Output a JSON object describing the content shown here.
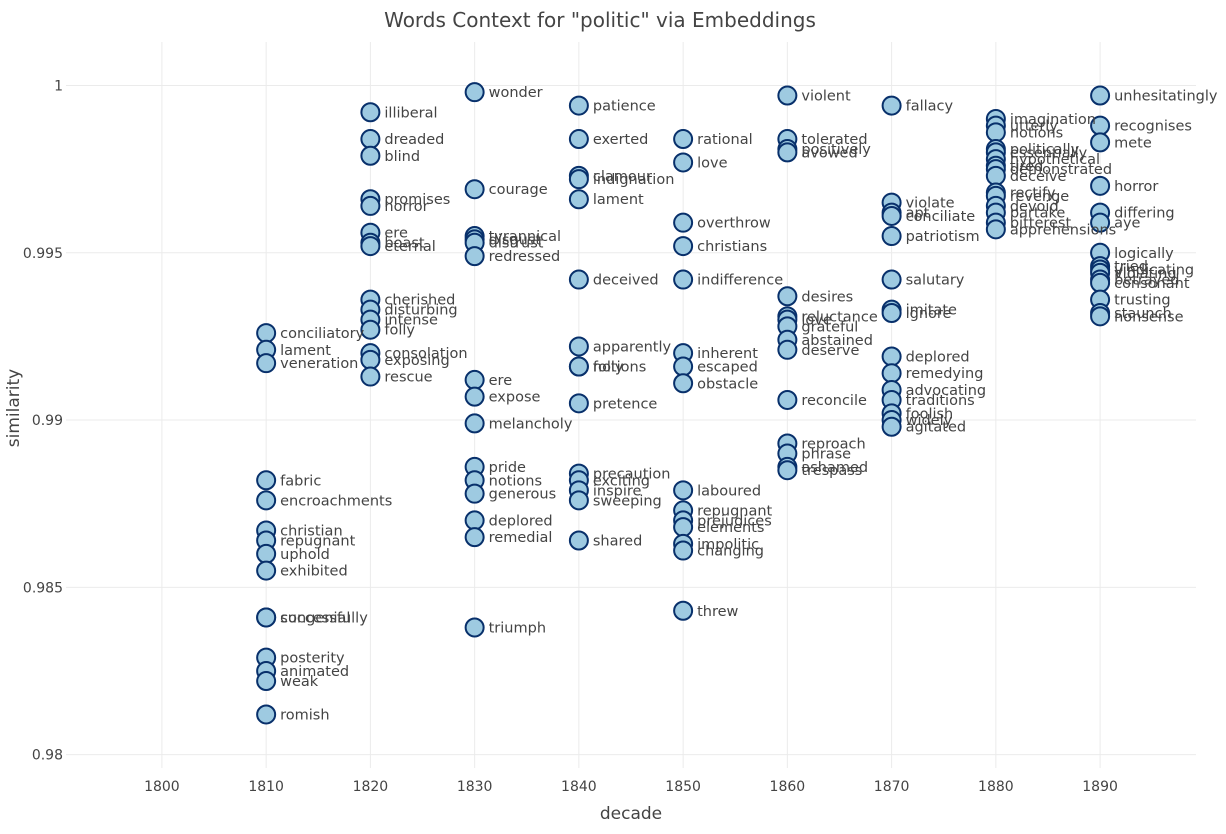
{
  "chart_data": {
    "type": "scatter",
    "title": "Words Context for \"politic\" via Embeddings",
    "xlabel": "decade",
    "ylabel": "similarity",
    "xlim": [
      1790.8,
      1899.2
    ],
    "ylim": [
      0.9796,
      1.0013
    ],
    "xticks": [
      1800,
      1810,
      1820,
      1830,
      1840,
      1850,
      1860,
      1870,
      1880,
      1890
    ],
    "yticks": [
      0.98,
      0.985,
      0.99,
      0.995,
      1
    ],
    "ytick_labels": [
      "0.98",
      "0.985",
      "0.99",
      "0.995",
      "1"
    ],
    "grid": true,
    "marker_fill": "#9ecae1",
    "marker_edge": "#08306b",
    "points": [
      {
        "x": 1810,
        "y": 0.9926,
        "label": "conciliatory"
      },
      {
        "x": 1810,
        "y": 0.9921,
        "label": "lament"
      },
      {
        "x": 1810,
        "y": 0.9917,
        "label": "veneration"
      },
      {
        "x": 1810,
        "y": 0.9882,
        "label": "fabric"
      },
      {
        "x": 1810,
        "y": 0.9876,
        "label": "encroachments"
      },
      {
        "x": 1810,
        "y": 0.9867,
        "label": "christian"
      },
      {
        "x": 1810,
        "y": 0.9864,
        "label": "repugnant"
      },
      {
        "x": 1810,
        "y": 0.986,
        "label": "uphold"
      },
      {
        "x": 1810,
        "y": 0.9855,
        "label": "exhibited"
      },
      {
        "x": 1810,
        "y": 0.9841,
        "label": "congenial"
      },
      {
        "x": 1810,
        "y": 0.9841,
        "label": "successfully"
      },
      {
        "x": 1810,
        "y": 0.9829,
        "label": "posterity"
      },
      {
        "x": 1810,
        "y": 0.9825,
        "label": "animated"
      },
      {
        "x": 1810,
        "y": 0.9822,
        "label": "weak"
      },
      {
        "x": 1810,
        "y": 0.9812,
        "label": "romish"
      },
      {
        "x": 1820,
        "y": 0.9992,
        "label": "illiberal"
      },
      {
        "x": 1820,
        "y": 0.9984,
        "label": "dreaded"
      },
      {
        "x": 1820,
        "y": 0.9979,
        "label": "blind"
      },
      {
        "x": 1820,
        "y": 0.9966,
        "label": "promises"
      },
      {
        "x": 1820,
        "y": 0.9964,
        "label": "horror"
      },
      {
        "x": 1820,
        "y": 0.9956,
        "label": "ere"
      },
      {
        "x": 1820,
        "y": 0.9953,
        "label": "boast"
      },
      {
        "x": 1820,
        "y": 0.9952,
        "label": "eternal"
      },
      {
        "x": 1820,
        "y": 0.9936,
        "label": "cherished"
      },
      {
        "x": 1820,
        "y": 0.9933,
        "label": "disturbing"
      },
      {
        "x": 1820,
        "y": 0.993,
        "label": "intense"
      },
      {
        "x": 1820,
        "y": 0.9927,
        "label": "folly"
      },
      {
        "x": 1820,
        "y": 0.992,
        "label": "consolation"
      },
      {
        "x": 1820,
        "y": 0.9918,
        "label": "exposing"
      },
      {
        "x": 1820,
        "y": 0.9913,
        "label": "rescue"
      },
      {
        "x": 1830,
        "y": 0.9998,
        "label": "wonder"
      },
      {
        "x": 1830,
        "y": 0.9969,
        "label": "courage"
      },
      {
        "x": 1830,
        "y": 0.9955,
        "label": "tyrannical"
      },
      {
        "x": 1830,
        "y": 0.9954,
        "label": "disgust"
      },
      {
        "x": 1830,
        "y": 0.9953,
        "label": "distrust"
      },
      {
        "x": 1830,
        "y": 0.9949,
        "label": "redressed"
      },
      {
        "x": 1830,
        "y": 0.9912,
        "label": "ere"
      },
      {
        "x": 1830,
        "y": 0.9907,
        "label": "expose"
      },
      {
        "x": 1830,
        "y": 0.9899,
        "label": "melancholy"
      },
      {
        "x": 1830,
        "y": 0.9886,
        "label": "pride"
      },
      {
        "x": 1830,
        "y": 0.9882,
        "label": "notions"
      },
      {
        "x": 1830,
        "y": 0.9878,
        "label": "generous"
      },
      {
        "x": 1830,
        "y": 0.987,
        "label": "deplored"
      },
      {
        "x": 1830,
        "y": 0.9865,
        "label": "remedial"
      },
      {
        "x": 1830,
        "y": 0.9838,
        "label": "triumph"
      },
      {
        "x": 1840,
        "y": 0.9994,
        "label": "patience"
      },
      {
        "x": 1840,
        "y": 0.9984,
        "label": "exerted"
      },
      {
        "x": 1840,
        "y": 0.9973,
        "label": "clamour"
      },
      {
        "x": 1840,
        "y": 0.9972,
        "label": "indignation"
      },
      {
        "x": 1840,
        "y": 0.9966,
        "label": "lament"
      },
      {
        "x": 1840,
        "y": 0.9942,
        "label": "deceived"
      },
      {
        "x": 1840,
        "y": 0.9922,
        "label": "apparently"
      },
      {
        "x": 1840,
        "y": 0.9916,
        "label": "notions"
      },
      {
        "x": 1840,
        "y": 0.9916,
        "label": "folly"
      },
      {
        "x": 1840,
        "y": 0.9905,
        "label": "pretence"
      },
      {
        "x": 1840,
        "y": 0.9884,
        "label": "precaution"
      },
      {
        "x": 1840,
        "y": 0.9882,
        "label": "exciting"
      },
      {
        "x": 1840,
        "y": 0.9879,
        "label": "inspire"
      },
      {
        "x": 1840,
        "y": 0.9876,
        "label": "sweeping"
      },
      {
        "x": 1840,
        "y": 0.9864,
        "label": "shared"
      },
      {
        "x": 1850,
        "y": 0.9984,
        "label": "rational"
      },
      {
        "x": 1850,
        "y": 0.9977,
        "label": "love"
      },
      {
        "x": 1850,
        "y": 0.9959,
        "label": "overthrow"
      },
      {
        "x": 1850,
        "y": 0.9952,
        "label": "christians"
      },
      {
        "x": 1850,
        "y": 0.9942,
        "label": "indifference"
      },
      {
        "x": 1850,
        "y": 0.992,
        "label": "inherent"
      },
      {
        "x": 1850,
        "y": 0.9916,
        "label": "escaped"
      },
      {
        "x": 1850,
        "y": 0.9911,
        "label": "obstacle"
      },
      {
        "x": 1850,
        "y": 0.9879,
        "label": "laboured"
      },
      {
        "x": 1850,
        "y": 0.9873,
        "label": "repugnant"
      },
      {
        "x": 1850,
        "y": 0.987,
        "label": "prejudices"
      },
      {
        "x": 1850,
        "y": 0.9868,
        "label": "elements"
      },
      {
        "x": 1850,
        "y": 0.9863,
        "label": "impolitic"
      },
      {
        "x": 1850,
        "y": 0.9861,
        "label": "changing"
      },
      {
        "x": 1850,
        "y": 0.9843,
        "label": "threw"
      },
      {
        "x": 1860,
        "y": 0.9997,
        "label": "violent"
      },
      {
        "x": 1860,
        "y": 0.9984,
        "label": "tolerated"
      },
      {
        "x": 1860,
        "y": 0.9981,
        "label": "positively"
      },
      {
        "x": 1860,
        "y": 0.998,
        "label": "avowed"
      },
      {
        "x": 1860,
        "y": 0.9937,
        "label": "desires"
      },
      {
        "x": 1860,
        "y": 0.9931,
        "label": "reluctance"
      },
      {
        "x": 1860,
        "y": 0.993,
        "label": "love"
      },
      {
        "x": 1860,
        "y": 0.9928,
        "label": "grateful"
      },
      {
        "x": 1860,
        "y": 0.9924,
        "label": "abstained"
      },
      {
        "x": 1860,
        "y": 0.9921,
        "label": "deserve"
      },
      {
        "x": 1860,
        "y": 0.9906,
        "label": "reconcile"
      },
      {
        "x": 1860,
        "y": 0.9893,
        "label": "reproach"
      },
      {
        "x": 1860,
        "y": 0.989,
        "label": "phrase"
      },
      {
        "x": 1860,
        "y": 0.9886,
        "label": "ashamed"
      },
      {
        "x": 1860,
        "y": 0.9885,
        "label": "trespass"
      },
      {
        "x": 1870,
        "y": 0.9994,
        "label": "fallacy"
      },
      {
        "x": 1870,
        "y": 0.9965,
        "label": "violate"
      },
      {
        "x": 1870,
        "y": 0.9962,
        "label": "apt"
      },
      {
        "x": 1870,
        "y": 0.9961,
        "label": "conciliate"
      },
      {
        "x": 1870,
        "y": 0.9955,
        "label": "patriotism"
      },
      {
        "x": 1870,
        "y": 0.9942,
        "label": "salutary"
      },
      {
        "x": 1870,
        "y": 0.9933,
        "label": "imitate"
      },
      {
        "x": 1870,
        "y": 0.9932,
        "label": "ignore"
      },
      {
        "x": 1870,
        "y": 0.9919,
        "label": "deplored"
      },
      {
        "x": 1870,
        "y": 0.9914,
        "label": "remedying"
      },
      {
        "x": 1870,
        "y": 0.9909,
        "label": "advocating"
      },
      {
        "x": 1870,
        "y": 0.9906,
        "label": "traditions"
      },
      {
        "x": 1870,
        "y": 0.9902,
        "label": "foolish"
      },
      {
        "x": 1870,
        "y": 0.99,
        "label": "widely"
      },
      {
        "x": 1870,
        "y": 0.9898,
        "label": "agitated"
      },
      {
        "x": 1880,
        "y": 0.999,
        "label": "imagination"
      },
      {
        "x": 1880,
        "y": 0.9988,
        "label": "utterly"
      },
      {
        "x": 1880,
        "y": 0.9986,
        "label": "notions"
      },
      {
        "x": 1880,
        "y": 0.9981,
        "label": "politically"
      },
      {
        "x": 1880,
        "y": 0.998,
        "label": "essentially"
      },
      {
        "x": 1880,
        "y": 0.9978,
        "label": "hypothetical"
      },
      {
        "x": 1880,
        "y": 0.9976,
        "label": "tired"
      },
      {
        "x": 1880,
        "y": 0.9975,
        "label": "demonstrated"
      },
      {
        "x": 1880,
        "y": 0.9973,
        "label": "deceive"
      },
      {
        "x": 1880,
        "y": 0.9968,
        "label": "rectify"
      },
      {
        "x": 1880,
        "y": 0.9967,
        "label": "revenge"
      },
      {
        "x": 1880,
        "y": 0.9964,
        "label": "devoid"
      },
      {
        "x": 1880,
        "y": 0.9962,
        "label": "partake"
      },
      {
        "x": 1880,
        "y": 0.9959,
        "label": "bitterest"
      },
      {
        "x": 1880,
        "y": 0.9957,
        "label": "apprehensions"
      },
      {
        "x": 1890,
        "y": 0.9997,
        "label": "unhesitatingly"
      },
      {
        "x": 1890,
        "y": 0.9988,
        "label": "recognises"
      },
      {
        "x": 1890,
        "y": 0.9983,
        "label": "mete"
      },
      {
        "x": 1890,
        "y": 0.997,
        "label": "horror"
      },
      {
        "x": 1890,
        "y": 0.9962,
        "label": "differing"
      },
      {
        "x": 1890,
        "y": 0.9959,
        "label": "aye"
      },
      {
        "x": 1890,
        "y": 0.995,
        "label": "logically"
      },
      {
        "x": 1890,
        "y": 0.9946,
        "label": "tried"
      },
      {
        "x": 1890,
        "y": 0.9945,
        "label": "vindicating"
      },
      {
        "x": 1890,
        "y": 0.9944,
        "label": "violating"
      },
      {
        "x": 1890,
        "y": 0.9942,
        "label": "betrayed"
      },
      {
        "x": 1890,
        "y": 0.9941,
        "label": "consonant"
      },
      {
        "x": 1890,
        "y": 0.9936,
        "label": "trusting"
      },
      {
        "x": 1890,
        "y": 0.9932,
        "label": "staunch"
      },
      {
        "x": 1890,
        "y": 0.9931,
        "label": "nonsense"
      }
    ]
  }
}
